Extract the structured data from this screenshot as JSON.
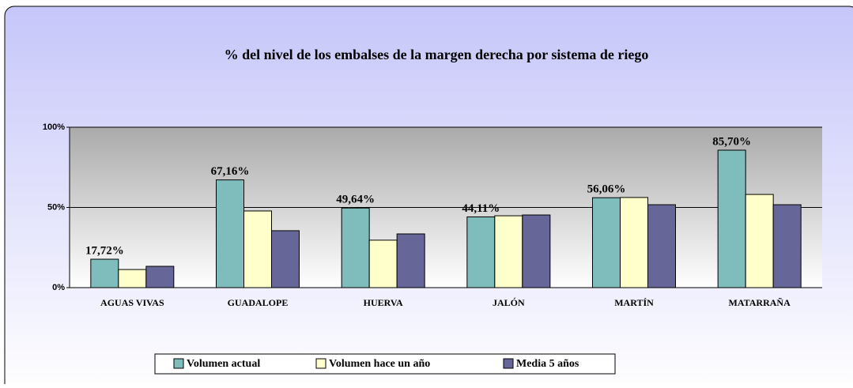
{
  "chart_data": {
    "type": "bar",
    "title": "% del nivel de los embalses de la margen derecha por sistema de riego",
    "categories": [
      "AGUAS VIVAS",
      "GUADALOPE",
      "HUERVA",
      "JALÓN",
      "MARTÍN",
      "MATARRAÑA"
    ],
    "series": [
      {
        "name": "Volumen actual",
        "color": "#7fbcbc",
        "values": [
          17.72,
          67.16,
          49.64,
          44.11,
          56.06,
          85.7
        ],
        "value_labels": [
          "17,72%",
          "67,16%",
          "49,64%",
          "44,11%",
          "56,06%",
          "85,70%"
        ]
      },
      {
        "name": "Volumen hace un año",
        "color": "#ffffcc",
        "values": [
          11.3,
          47.8,
          29.6,
          44.8,
          56.2,
          58.1
        ]
      },
      {
        "name": "Media 5 años",
        "color": "#666699",
        "values": [
          13.3,
          35.5,
          33.5,
          45.3,
          51.7,
          51.7
        ]
      }
    ],
    "ylim": [
      0,
      100
    ],
    "yticks": [
      {
        "value": 0,
        "label": "0%"
      },
      {
        "value": 50,
        "label": "50%"
      },
      {
        "value": 100,
        "label": "100%"
      }
    ],
    "grid": true,
    "legend": "bottom"
  }
}
